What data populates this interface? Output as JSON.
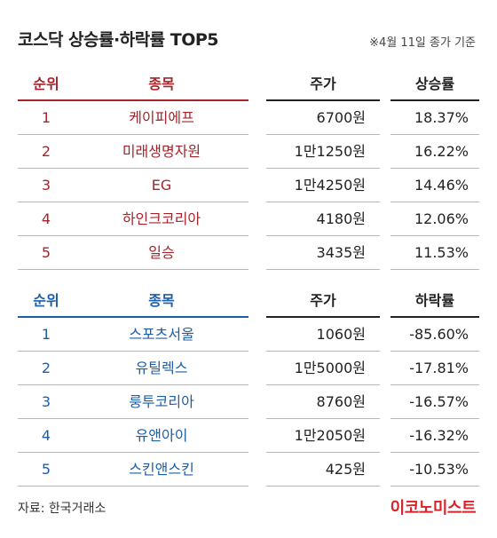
{
  "header": {
    "title": "코스닥 상승률·하락률 TOP5",
    "basis": "※4월 11일 종가 기준"
  },
  "colors": {
    "rise_accent": "#a5242b",
    "fall_accent": "#1c5ea8",
    "brand": "#d9232a"
  },
  "chart_data": [
    {
      "type": "table",
      "columns": [
        "순위",
        "종목",
        "주가",
        "상승률"
      ],
      "rows": [
        [
          "1",
          "케이피에프",
          "6700원",
          "18.37%"
        ],
        [
          "2",
          "미래생명자원",
          "1만1250원",
          "16.22%"
        ],
        [
          "3",
          "EG",
          "1만4250원",
          "14.46%"
        ],
        [
          "4",
          "하인크코리아",
          "4180원",
          "12.06%"
        ],
        [
          "5",
          "일승",
          "3435원",
          "11.53%"
        ]
      ]
    },
    {
      "type": "table",
      "columns": [
        "순위",
        "종목",
        "주가",
        "하락률"
      ],
      "rows": [
        [
          "1",
          "스포츠서울",
          "1060원",
          "-85.60%"
        ],
        [
          "2",
          "유틸렉스",
          "1만5000원",
          "-17.81%"
        ],
        [
          "3",
          "룽투코리아",
          "8760원",
          "-16.57%"
        ],
        [
          "4",
          "유앤아이",
          "1만2050원",
          "-16.32%"
        ],
        [
          "5",
          "스킨앤스킨",
          "425원",
          "-10.53%"
        ]
      ]
    }
  ],
  "footer": {
    "source": "자료: 한국거래소",
    "brand": "이코노미스트"
  }
}
